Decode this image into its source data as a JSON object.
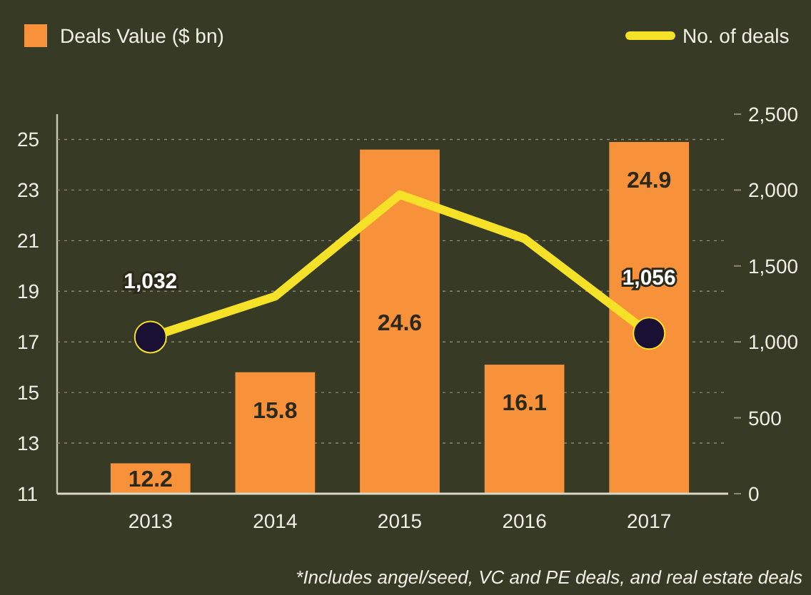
{
  "chart_data": {
    "type": "bar",
    "categories": [
      "2013",
      "2014",
      "2015",
      "2016",
      "2017"
    ],
    "series": [
      {
        "name": "Deals Value ($ bn)",
        "color": "#f7913a",
        "values": [
          12.2,
          15.8,
          24.6,
          16.1,
          24.9
        ],
        "value_labels": [
          "12.2",
          "15.8",
          "24.6",
          "16.1",
          "24.9"
        ]
      },
      {
        "name": "No. of deals",
        "type": "line",
        "axis": "y2",
        "color": "#f5e228",
        "values": [
          1032,
          1300,
          1970,
          1680,
          1056
        ],
        "value_labels": [
          "1,032",
          null,
          null,
          null,
          "1,056"
        ]
      }
    ],
    "ylim": [
      11,
      26
    ],
    "yticks": [
      11,
      13,
      15,
      17,
      19,
      21,
      23,
      25
    ],
    "y2lim": [
      0,
      2500
    ],
    "y2ticks": [
      {
        "value": 0,
        "label": "0"
      },
      {
        "value": 500,
        "label": "500"
      },
      {
        "value": 1000,
        "label": "1,000"
      },
      {
        "value": 1500,
        "label": "1,500"
      },
      {
        "value": 2000,
        "label": "2,000"
      },
      {
        "value": 2500,
        "label": "2,500"
      }
    ],
    "grid": "y",
    "legend": "top",
    "annotations": [
      "*Includes angel/seed, VC and PE deals, and real estate deals"
    ]
  }
}
